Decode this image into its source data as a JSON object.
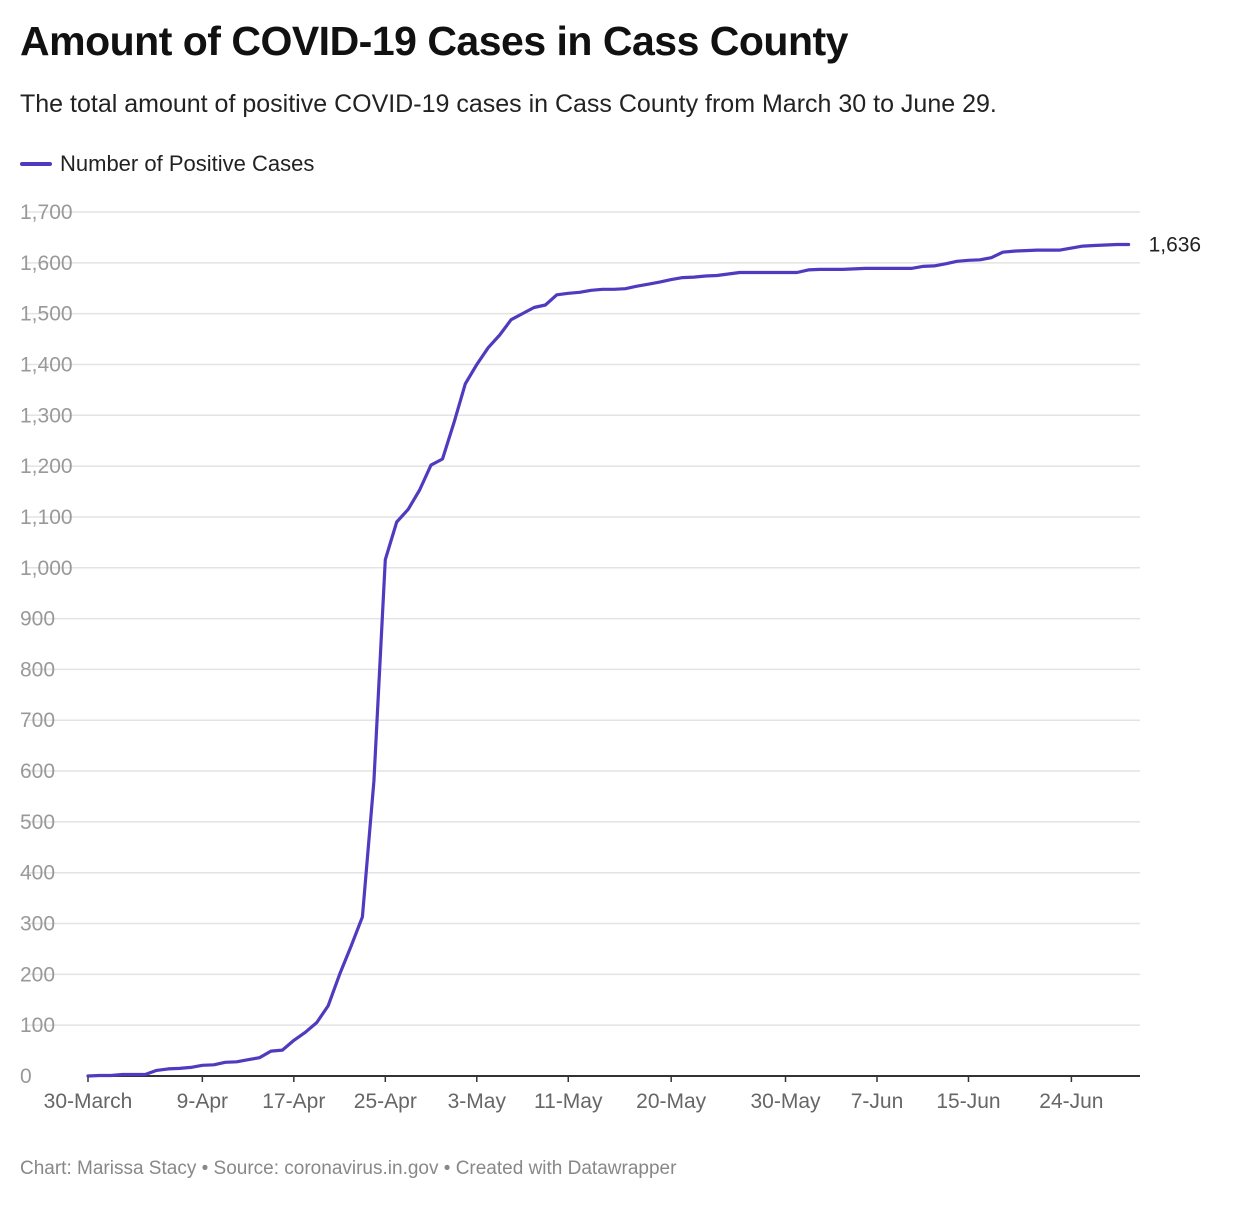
{
  "title": "Amount of COVID-19 Cases in Cass County",
  "subtitle": "The total amount of positive COVID-19 cases in Cass County from March 30 to June 29.",
  "footer": "Chart: Marissa Stacy • Source: coronavirus.in.gov • Created with Datawrapper",
  "colors": {
    "line": "#4f3ac0",
    "grid": "#e3e3e3",
    "axis": "#333333"
  },
  "chart_data": {
    "type": "line",
    "title": "Amount of COVID-19 Cases in Cass County",
    "xlabel": "",
    "ylabel": "",
    "ylim": [
      0,
      1700
    ],
    "yticks": [
      0,
      100,
      200,
      300,
      400,
      500,
      600,
      700,
      800,
      900,
      1000,
      1100,
      1200,
      1300,
      1400,
      1500,
      1600,
      1700
    ],
    "ytick_labels": [
      "0",
      "100",
      "200",
      "300",
      "400",
      "500",
      "600",
      "700",
      "800",
      "900",
      "1,000",
      "1,100",
      "1,200",
      "1,300",
      "1,400",
      "1,500",
      "1,600",
      "1,700"
    ],
    "xlim": [
      "2020-03-30",
      "2020-06-30"
    ],
    "xticks": [
      {
        "label": "30-March",
        "date": "2020-03-30"
      },
      {
        "label": "9-Apr",
        "date": "2020-04-09"
      },
      {
        "label": "17-Apr",
        "date": "2020-04-17"
      },
      {
        "label": "25-Apr",
        "date": "2020-04-25"
      },
      {
        "label": "3-May",
        "date": "2020-05-03"
      },
      {
        "label": "11-May",
        "date": "2020-05-11"
      },
      {
        "label": "20-May",
        "date": "2020-05-20"
      },
      {
        "label": "30-May",
        "date": "2020-05-30"
      },
      {
        "label": "7-Jun",
        "date": "2020-06-07"
      },
      {
        "label": "15-Jun",
        "date": "2020-06-15"
      },
      {
        "label": "24-Jun",
        "date": "2020-06-24"
      }
    ],
    "legend": "top-left",
    "grid": true,
    "series": [
      {
        "name": "Number of Positive Cases",
        "end_label": "1,636",
        "points": [
          [
            "2020-03-30",
            0
          ],
          [
            "2020-03-31",
            1
          ],
          [
            "2020-04-01",
            1
          ],
          [
            "2020-04-02",
            3
          ],
          [
            "2020-04-03",
            3
          ],
          [
            "2020-04-04",
            3
          ],
          [
            "2020-04-05",
            11
          ],
          [
            "2020-04-06",
            14
          ],
          [
            "2020-04-07",
            15
          ],
          [
            "2020-04-08",
            17
          ],
          [
            "2020-04-09",
            21
          ],
          [
            "2020-04-10",
            22
          ],
          [
            "2020-04-11",
            27
          ],
          [
            "2020-04-12",
            28
          ],
          [
            "2020-04-13",
            32
          ],
          [
            "2020-04-14",
            36
          ],
          [
            "2020-04-15",
            49
          ],
          [
            "2020-04-16",
            51
          ],
          [
            "2020-04-17",
            70
          ],
          [
            "2020-04-18",
            86
          ],
          [
            "2020-04-19",
            105
          ],
          [
            "2020-04-20",
            138
          ],
          [
            "2020-04-21",
            200
          ],
          [
            "2020-04-22",
            255
          ],
          [
            "2020-04-23",
            313
          ],
          [
            "2020-04-24",
            580
          ],
          [
            "2020-04-25",
            1016
          ],
          [
            "2020-04-26",
            1090
          ],
          [
            "2020-04-27",
            1115
          ],
          [
            "2020-04-28",
            1153
          ],
          [
            "2020-04-29",
            1202
          ],
          [
            "2020-04-30",
            1214
          ],
          [
            "2020-05-01",
            1285
          ],
          [
            "2020-05-02",
            1362
          ],
          [
            "2020-05-03",
            1400
          ],
          [
            "2020-05-04",
            1433
          ],
          [
            "2020-05-05",
            1458
          ],
          [
            "2020-05-06",
            1488
          ],
          [
            "2020-05-07",
            1500
          ],
          [
            "2020-05-08",
            1512
          ],
          [
            "2020-05-09",
            1517
          ],
          [
            "2020-05-10",
            1537
          ],
          [
            "2020-05-11",
            1540
          ],
          [
            "2020-05-12",
            1542
          ],
          [
            "2020-05-13",
            1546
          ],
          [
            "2020-05-14",
            1548
          ],
          [
            "2020-05-15",
            1548
          ],
          [
            "2020-05-16",
            1549
          ],
          [
            "2020-05-17",
            1554
          ],
          [
            "2020-05-18",
            1558
          ],
          [
            "2020-05-19",
            1562
          ],
          [
            "2020-05-20",
            1567
          ],
          [
            "2020-05-21",
            1571
          ],
          [
            "2020-05-22",
            1572
          ],
          [
            "2020-05-23",
            1574
          ],
          [
            "2020-05-24",
            1575
          ],
          [
            "2020-05-25",
            1578
          ],
          [
            "2020-05-26",
            1581
          ],
          [
            "2020-05-27",
            1581
          ],
          [
            "2020-05-28",
            1581
          ],
          [
            "2020-05-29",
            1581
          ],
          [
            "2020-05-30",
            1581
          ],
          [
            "2020-05-31",
            1581
          ],
          [
            "2020-06-01",
            1586
          ],
          [
            "2020-06-02",
            1587
          ],
          [
            "2020-06-03",
            1587
          ],
          [
            "2020-06-04",
            1587
          ],
          [
            "2020-06-05",
            1588
          ],
          [
            "2020-06-06",
            1589
          ],
          [
            "2020-06-07",
            1589
          ],
          [
            "2020-06-08",
            1589
          ],
          [
            "2020-06-09",
            1589
          ],
          [
            "2020-06-10",
            1589
          ],
          [
            "2020-06-11",
            1593
          ],
          [
            "2020-06-12",
            1594
          ],
          [
            "2020-06-13",
            1598
          ],
          [
            "2020-06-14",
            1603
          ],
          [
            "2020-06-15",
            1605
          ],
          [
            "2020-06-16",
            1606
          ],
          [
            "2020-06-17",
            1610
          ],
          [
            "2020-06-18",
            1621
          ],
          [
            "2020-06-19",
            1623
          ],
          [
            "2020-06-20",
            1624
          ],
          [
            "2020-06-21",
            1625
          ],
          [
            "2020-06-22",
            1625
          ],
          [
            "2020-06-23",
            1625
          ],
          [
            "2020-06-24",
            1629
          ],
          [
            "2020-06-25",
            1633
          ],
          [
            "2020-06-26",
            1634
          ],
          [
            "2020-06-27",
            1635
          ],
          [
            "2020-06-28",
            1636
          ],
          [
            "2020-06-29",
            1636
          ]
        ]
      }
    ]
  }
}
